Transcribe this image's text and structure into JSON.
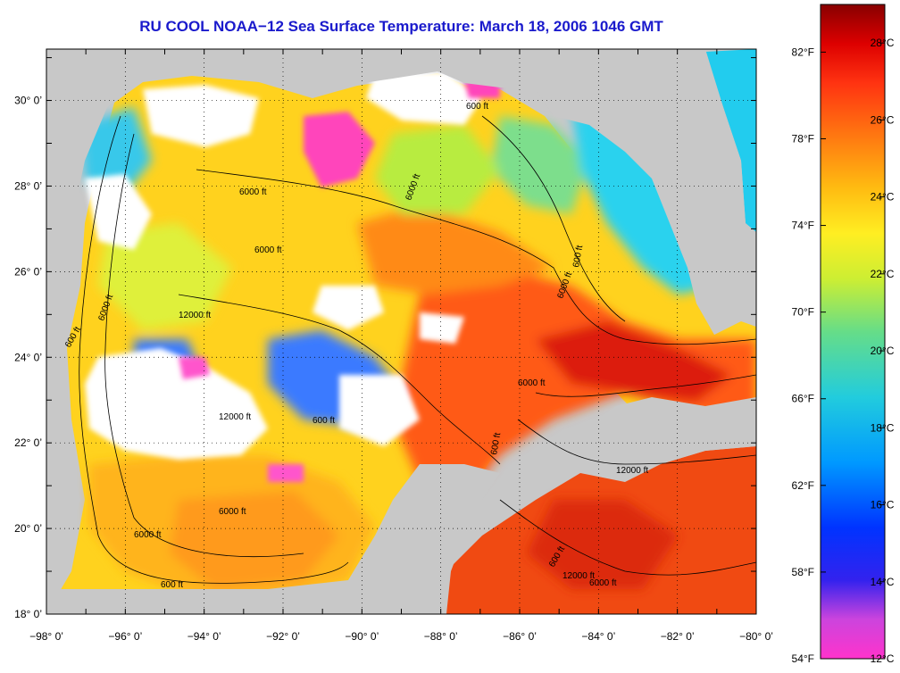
{
  "title": "RU COOL  NOAA−12  Sea Surface Temperature:  March 18, 2006 1046 GMT",
  "map": {
    "lon_labels": [
      "−98° 0’",
      "−96° 0’",
      "−94° 0’",
      "−92° 0’",
      "−90° 0’",
      "−88° 0’",
      "−86° 0’",
      "−84° 0’",
      "−82° 0’",
      "−80° 0’"
    ],
    "lat_labels": [
      "30° 0’",
      "28° 0’",
      "26° 0’",
      "24° 0’",
      "22° 0’",
      "20° 0’",
      "18° 0’"
    ],
    "lon_range": [
      -98,
      -80
    ],
    "lat_range": [
      18,
      31.2
    ],
    "colors": {
      "land": "#c8c8c8",
      "cloud": "#ffffff",
      "title": "#1a1acc",
      "warm": "#f25a14",
      "mid": "#ffd21e",
      "cool": "#00c8ff"
    },
    "contour_labels": [
      "600 ft",
      "6000 ft",
      "12000 ft",
      "600 ft",
      "6000 ft",
      "6000 ft",
      "6000 ft",
      "600 ft",
      "6000 ft",
      "12000 ft",
      "6000 ft",
      "600 ft",
      "12000 ft",
      "6000 ft",
      "600 ft",
      "6000 ft",
      "600 ft",
      "12000 ft",
      "6000 ft",
      "600 ft"
    ]
  },
  "colorbar": {
    "fahrenheit_labels": [
      "82°F",
      "78°F",
      "74°F",
      "70°F",
      "66°F",
      "62°F",
      "58°F",
      "54°F"
    ],
    "celsius_labels": [
      "28°C",
      "26°C",
      "24°C",
      "22°C",
      "20°C",
      "18°C",
      "16°C",
      "14°C",
      "12°C"
    ],
    "celsius_range": [
      12,
      29
    ],
    "fahrenheit_range": [
      54,
      84.2
    ]
  }
}
